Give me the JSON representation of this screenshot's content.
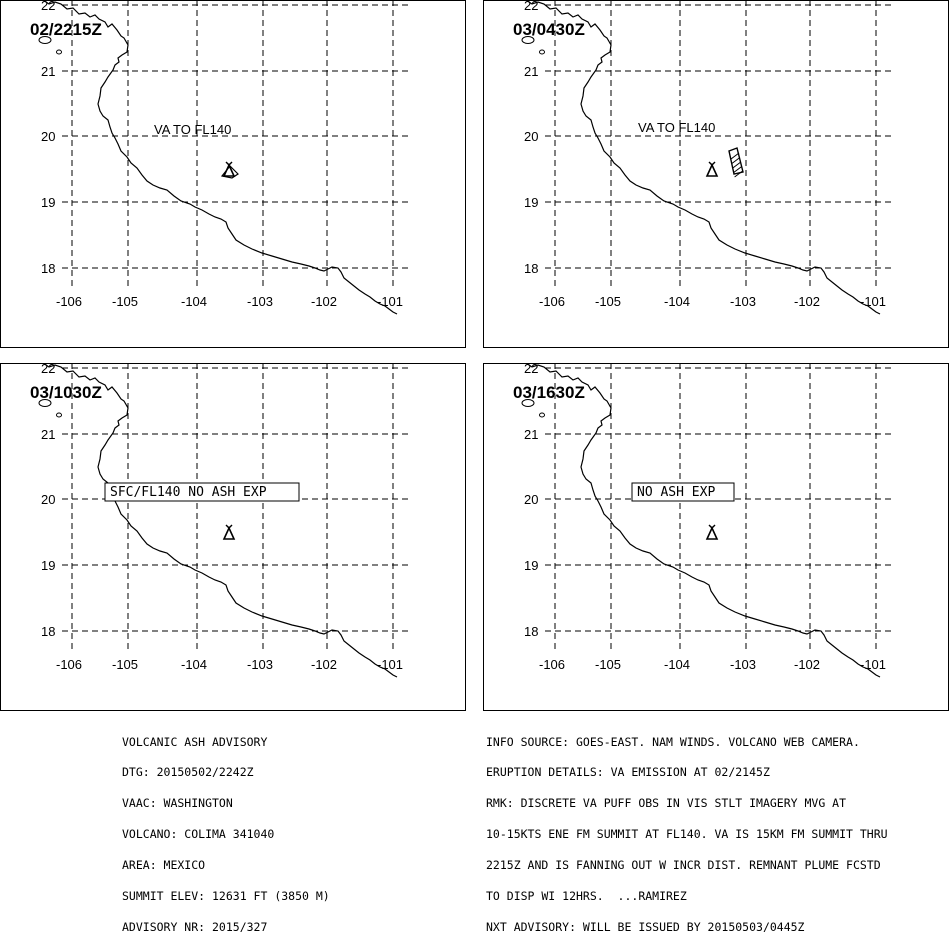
{
  "panels": [
    {
      "time": "02/2215Z",
      "label": "VA TO FL140",
      "label_boxed": false,
      "ash_box": false
    },
    {
      "time": "03/0430Z",
      "label": "VA TO FL140",
      "label_boxed": false,
      "ash_box": true
    },
    {
      "time": "03/1030Z",
      "label": "SFC/FL140 NO ASH EXP",
      "label_boxed": true,
      "ash_box": false
    },
    {
      "time": "03/1630Z",
      "label": "NO ASH EXP",
      "label_boxed": true,
      "ash_box": false
    }
  ],
  "map": {
    "lat_ticks": [
      "22",
      "21",
      "20",
      "19",
      "18"
    ],
    "lon_ticks": [
      "-106",
      "-105",
      "-104",
      "-103",
      "-102",
      "-101"
    ],
    "volcano_icon": "volcano-triangle-icon",
    "grid": "dashed"
  },
  "advisory": {
    "left": [
      "VOLCANIC ASH ADVISORY",
      "DTG: 20150502/2242Z",
      "VAAC: WASHINGTON",
      "VOLCANO: COLIMA 341040",
      "AREA: MEXICO",
      "SUMMIT ELEV: 12631 FT (3850 M)",
      "ADVISORY NR: 2015/327"
    ],
    "right": [
      "INFO SOURCE: GOES-EAST. NAM WINDS. VOLCANO WEB CAMERA.",
      "ERUPTION DETAILS: VA EMISSION AT 02/2145Z",
      "RMK: DISCRETE VA PUFF OBS IN VIS STLT IMAGERY MVG AT",
      "10-15KTS ENE FM SUMMIT AT FL140. VA IS 15KM FM SUMMIT THRU",
      "2215Z AND IS FANNING OUT W INCR DIST. REMNANT PLUME FCSTD",
      "TO DISP WI 12HRS.  ...RAMIREZ",
      "NXT ADVISORY: WILL BE ISSUED BY 20150503/0445Z"
    ]
  }
}
